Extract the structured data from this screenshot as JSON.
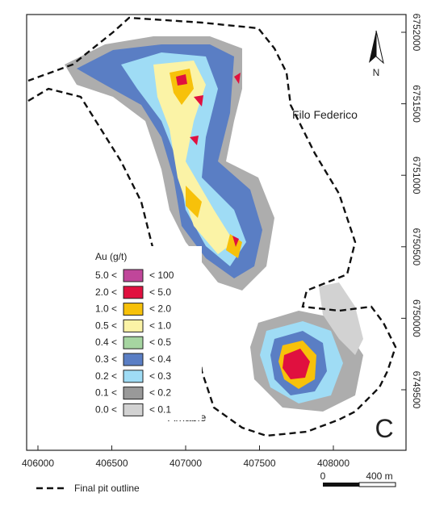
{
  "map": {
    "labels": {
      "north": "N",
      "area_a": "Filo Federico",
      "area_b": "Amable",
      "panel": "C"
    },
    "easting_ticks": [
      406000,
      406500,
      407000,
      407500,
      408000
    ],
    "northing_ticks": [
      6749500,
      6750000,
      6750500,
      6751000,
      6751500,
      6752000
    ],
    "legend": {
      "title": "Au (g/t)",
      "entries": [
        {
          "low": "5.0 <",
          "high": "< 100",
          "color": "#c0469a"
        },
        {
          "low": "2.0 <",
          "high": "< 5.0",
          "color": "#e0103f"
        },
        {
          "low": "1.0 <",
          "high": "< 2.0",
          "color": "#f7c10a"
        },
        {
          "low": "0.5 <",
          "high": "< 1.0",
          "color": "#fbf3a6"
        },
        {
          "low": "0.4 <",
          "high": "< 0.5",
          "color": "#a6d5a1"
        },
        {
          "low": "0.3 <",
          "high": "< 0.4",
          "color": "#5a7ec4"
        },
        {
          "low": "0.2 <",
          "high": "< 0.3",
          "color": "#9fdcf5"
        },
        {
          "low": "0.1 <",
          "high": "< 0.2",
          "color": "#999999"
        },
        {
          "low": "0.0 <",
          "high": "< 0.1",
          "color": "#d2d2d2"
        }
      ]
    },
    "footer": {
      "pit_outline": "Final pit outline",
      "scale_start": "0",
      "scale_end": "400 m"
    }
  }
}
